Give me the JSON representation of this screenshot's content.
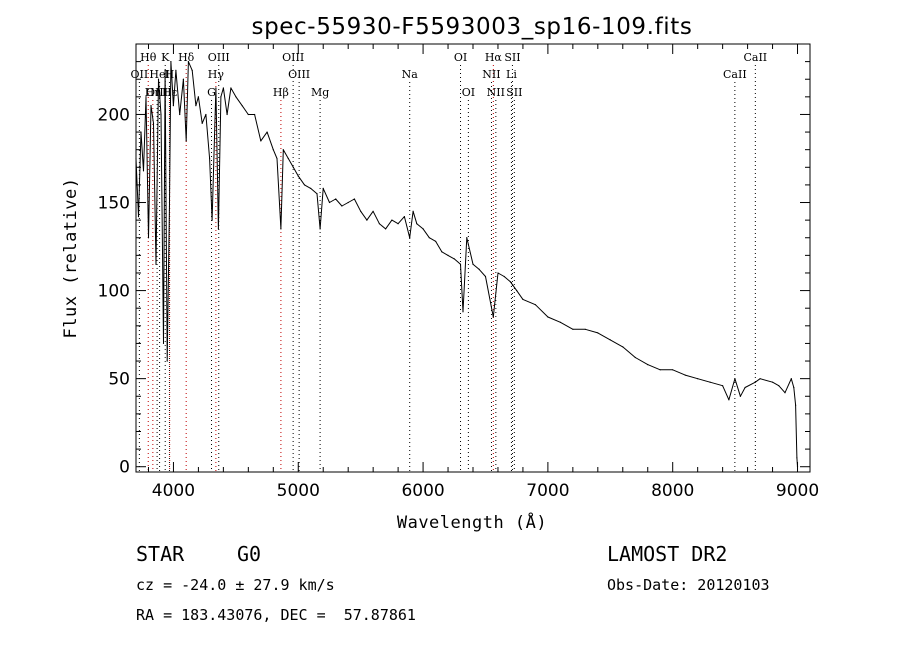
{
  "chart_data": {
    "type": "line",
    "title": "spec-55930-F5593003_sp16-109.fits",
    "xlabel": "Wavelength (Å)",
    "ylabel": "Flux (relative)",
    "xlim": [
      3700,
      9100
    ],
    "ylim": [
      -3,
      240
    ],
    "x_ticks": [
      4000,
      5000,
      6000,
      7000,
      8000,
      9000
    ],
    "y_ticks": [
      0,
      50,
      100,
      150,
      200
    ],
    "grid": false,
    "series": [
      {
        "x": [
          3700,
          3720,
          3740,
          3760,
          3780,
          3800,
          3820,
          3840,
          3860,
          3880,
          3900,
          3920,
          3933,
          3950,
          3968,
          3980,
          4000,
          4020,
          4050,
          4080,
          4102,
          4120,
          4150,
          4180,
          4200,
          4230,
          4260,
          4290,
          4310,
          4340,
          4360,
          4380,
          4400,
          4430,
          4460,
          4500,
          4550,
          4600,
          4650,
          4700,
          4750,
          4800,
          4830,
          4861,
          4880,
          4920,
          4960,
          5000,
          5050,
          5100,
          5150,
          5175,
          5200,
          5250,
          5300,
          5350,
          5400,
          5450,
          5500,
          5550,
          5600,
          5650,
          5700,
          5750,
          5800,
          5850,
          5893,
          5920,
          5950,
          6000,
          6050,
          6100,
          6150,
          6200,
          6250,
          6300,
          6320,
          6350,
          6400,
          6450,
          6500,
          6563,
          6600,
          6650,
          6700,
          6750,
          6800,
          6900,
          7000,
          7100,
          7200,
          7300,
          7400,
          7500,
          7600,
          7700,
          7800,
          7900,
          8000,
          8100,
          8200,
          8300,
          8400,
          8450,
          8498,
          8542,
          8580,
          8662,
          8700,
          8800,
          8850,
          8900,
          8950,
          8970,
          8985,
          8995,
          9000
        ],
        "y": [
          175,
          142,
          190,
          168,
          210,
          130,
          205,
          195,
          115,
          220,
          200,
          70,
          225,
          60,
          150,
          230,
          205,
          225,
          200,
          220,
          185,
          230,
          225,
          205,
          210,
          195,
          200,
          175,
          140,
          215,
          135,
          210,
          215,
          200,
          215,
          210,
          205,
          200,
          200,
          185,
          190,
          180,
          175,
          135,
          180,
          175,
          170,
          165,
          160,
          158,
          155,
          135,
          158,
          150,
          152,
          148,
          150,
          152,
          145,
          140,
          145,
          138,
          135,
          140,
          138,
          142,
          130,
          145,
          138,
          135,
          130,
          128,
          122,
          120,
          118,
          115,
          88,
          130,
          115,
          112,
          108,
          85,
          110,
          108,
          105,
          100,
          95,
          92,
          85,
          82,
          78,
          78,
          76,
          72,
          68,
          62,
          58,
          55,
          55,
          52,
          50,
          48,
          46,
          38,
          50,
          40,
          45,
          48,
          50,
          48,
          46,
          42,
          50,
          45,
          35,
          5,
          0
        ]
      }
    ],
    "lines": [
      {
        "label": "Hθ",
        "x": 3798,
        "color": "#c00000",
        "row": 0
      },
      {
        "label": "K",
        "x": 3934,
        "color": "#000000",
        "row": 0
      },
      {
        "label": "Hδ",
        "x": 4102,
        "color": "#c00000",
        "row": 0
      },
      {
        "label": "OIII",
        "x": 4363,
        "color": "#000000",
        "row": 0
      },
      {
        "label": "OIII",
        "x": 4959,
        "color": "#000000",
        "row": 0
      },
      {
        "label": "OI",
        "x": 6300,
        "color": "#000000",
        "row": 0
      },
      {
        "label": "Hα",
        "x": 6563,
        "color": "#c00000",
        "row": 0
      },
      {
        "label": "SII",
        "x": 6716,
        "color": "#000000",
        "row": 0
      },
      {
        "label": "CaII",
        "x": 8662,
        "color": "#000000",
        "row": 0
      },
      {
        "label": "OII",
        "x": 3727,
        "color": "#000000",
        "row": 1
      },
      {
        "label": "HeI",
        "x": 3889,
        "color": "#000000",
        "row": 1
      },
      {
        "label": "H",
        "x": 3968,
        "color": "#000000",
        "row": 1
      },
      {
        "label": "Hγ",
        "x": 4340,
        "color": "#c00000",
        "row": 1
      },
      {
        "label": "OIII",
        "x": 5007,
        "color": "#000000",
        "row": 1
      },
      {
        "label": "Na",
        "x": 5893,
        "color": "#000000",
        "row": 1
      },
      {
        "label": "NII",
        "x": 6548,
        "color": "#000000",
        "row": 1
      },
      {
        "label": "Li",
        "x": 6708,
        "color": "#000000",
        "row": 1
      },
      {
        "label": "CaII",
        "x": 8498,
        "color": "#000000",
        "row": 1
      },
      {
        "label": "OIII",
        "x": 3869,
        "color": "#000000",
        "row": 2
      },
      {
        "label": "Hη",
        "x": 3835,
        "color": "#c00000",
        "row": 2
      },
      {
        "label": "Hε",
        "x": 3970,
        "color": "#c00000",
        "row": 2
      },
      {
        "label": "G",
        "x": 4305,
        "color": "#000000",
        "row": 2
      },
      {
        "label": "Hβ",
        "x": 4861,
        "color": "#c00000",
        "row": 2
      },
      {
        "label": "Mg",
        "x": 5175,
        "color": "#000000",
        "row": 2
      },
      {
        "label": "OI",
        "x": 6363,
        "color": "#000000",
        "row": 2
      },
      {
        "label": "NII",
        "x": 6583,
        "color": "#000000",
        "row": 2
      },
      {
        "label": "SII",
        "x": 6731,
        "color": "#000000",
        "row": 2
      }
    ]
  },
  "info": {
    "object_class": "STAR",
    "subclass": "G0",
    "survey": "LAMOST DR2",
    "cz": "cz = -24.0 ± 27.9 km/s",
    "obs_date": "Obs-Date: 20120103",
    "coords": "RA = 183.43076, DEC =  57.87861"
  }
}
